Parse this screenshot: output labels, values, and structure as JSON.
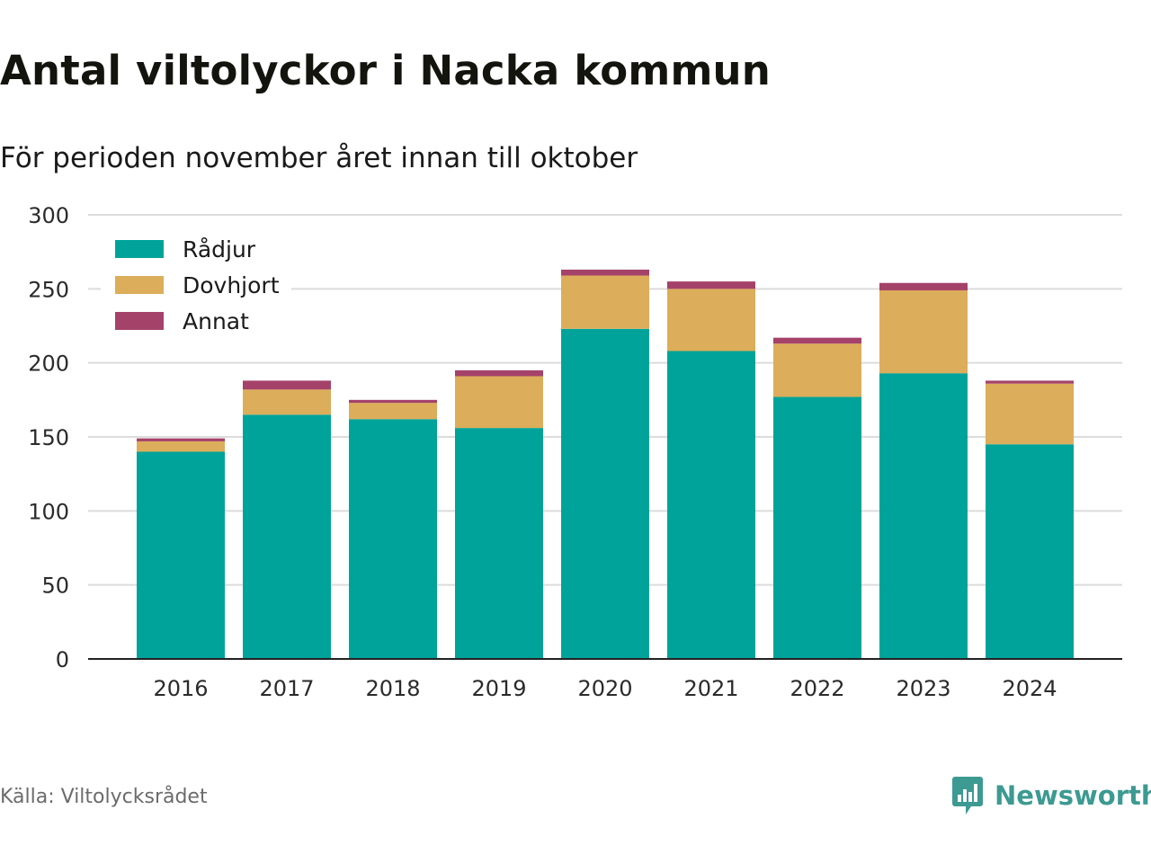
{
  "title": "Antal viltolyckor i Nacka kommun",
  "subtitle": "För perioden november året innan till oktober",
  "source": "Källa: Viltolycksrådet",
  "brand": {
    "name": "Newsworthy",
    "icon": "newsworthy-logo-icon",
    "color": "#3c9a92"
  },
  "chart_data": {
    "type": "bar",
    "stacked": true,
    "categories": [
      "2016",
      "2017",
      "2018",
      "2019",
      "2020",
      "2021",
      "2022",
      "2023",
      "2024"
    ],
    "series": [
      {
        "name": "Rådjur",
        "color": "#00a39a",
        "values": [
          140,
          165,
          162,
          156,
          223,
          208,
          177,
          193,
          145
        ]
      },
      {
        "name": "Dovhjort",
        "color": "#dcad5a",
        "values": [
          7,
          17,
          11,
          35,
          36,
          42,
          36,
          56,
          41
        ]
      },
      {
        "name": "Annat",
        "color": "#a5426a",
        "values": [
          2,
          6,
          2,
          4,
          4,
          5,
          4,
          5,
          2
        ]
      }
    ],
    "ylim": [
      0,
      300
    ],
    "yticks": [
      0,
      50,
      100,
      150,
      200,
      250,
      300
    ],
    "grid": true,
    "legend": "top-left"
  }
}
